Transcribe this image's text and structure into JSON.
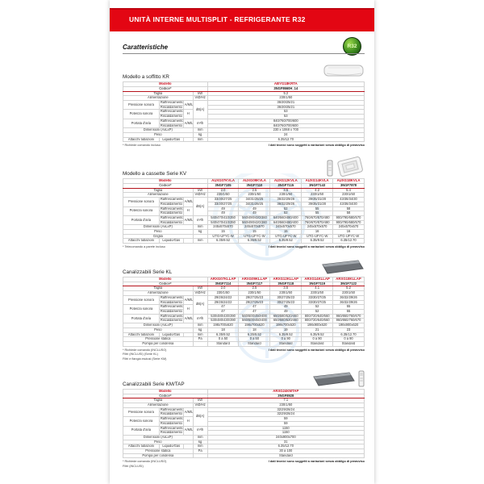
{
  "banner": {
    "title": "UNITÀ INTERNE MULTISPLIT - REFRIGERANTE R32"
  },
  "badge_label": "R32",
  "heading": "Caratteristiche",
  "common": {
    "modello_label": "Modello",
    "codice_label": "Codice*",
    "footnote_right": "I dati tecnici sono soggetti a variazioni senza obbligo di preavviso"
  },
  "sections": [
    {
      "title": "Modello a soffitto KR",
      "image": "ceiling-unit-image",
      "models": [
        "ABYG18KRTA"
      ],
      "codes": [
        "3NGF8660H_14"
      ],
      "rows": [
        {
          "label": "Taglia",
          "unit": "kW",
          "values": [
            "5.2"
          ]
        },
        {
          "label": "Alimentazione",
          "unit": "V/Ø/Hz",
          "values": [
            "230/1/50"
          ]
        },
        {
          "label": "Pressione sonora",
          "sub": [
            "Raffrescamento",
            "Riscaldamento"
          ],
          "qual": "A/M/L Q",
          "unit": "dB(A)",
          "unitRowspan": 4,
          "values": [
            [
              "36/30/25/21"
            ],
            [
              "36/30/25/21"
            ]
          ]
        },
        {
          "label": "Potenza sonora",
          "sub": [
            "Raffrescamento",
            "Riscaldamento"
          ],
          "qual": "H",
          "noUnit": true,
          "values": [
            [
              "53"
            ],
            [
              "53"
            ]
          ]
        },
        {
          "label": "Portata d'aria",
          "sub": [
            "Raffrescamento",
            "Riscaldamento"
          ],
          "qual": "A/M/L Q",
          "unit": "m³/h",
          "values": [
            [
              "840/760/700/600"
            ],
            [
              "840/760/700/600"
            ]
          ]
        },
        {
          "label": "Dimensioni (AxLxP)",
          "unit": "mm",
          "values": [
            "230 x 1068 x 700"
          ]
        },
        {
          "label": "Peso",
          "unit": "kg",
          "values": [
            "24"
          ]
        },
        {
          "label": "Attacchi tubazioni",
          "sub": [
            "Liquido/Gas"
          ],
          "unit": "mm",
          "values": [
            [
              "6.35/12.70"
            ]
          ]
        }
      ],
      "footnotes": [
        "* Richiede comando incluso"
      ]
    },
    {
      "title": "Modello a cassette Serie KV",
      "image": "cassette-unit-image",
      "models": [
        "AUXG07KVLA",
        "AUXG09KVLA",
        "AUXG12KVLA",
        "AUXG14KVLA",
        "AUXG18KVLA"
      ],
      "codes": [
        "3NGF7105",
        "3NGF7110",
        "3NGF7115",
        "3NGF7143",
        "3NGF7878"
      ],
      "rows": [
        {
          "label": "Taglia",
          "unit": "kW",
          "values": [
            "2.0",
            "2.5",
            "3.5",
            "4.2",
            "5.4"
          ]
        },
        {
          "label": "Alimentazione",
          "unit": "V/Ø/Hz",
          "values": [
            "230/1/50",
            "230/1/50",
            "230/1/50",
            "230/1/50",
            "230/1/50"
          ]
        },
        {
          "label": "Pressione sonora",
          "sub": [
            "Raffrescamento",
            "Riscaldamento"
          ],
          "qual": "A/M/L Q",
          "unit": "dB(A)",
          "unitRowspan": 4,
          "values": [
            [
              "33/30/27/25",
              "34/31/28/25",
              "36/32/29/26",
              "39/35/31/28",
              "43/38/34/30"
            ],
            [
              "33/30/27/25",
              "34/31/28/25",
              "36/32/29/26",
              "39/35/31/28",
              "43/38/34/30"
            ]
          ]
        },
        {
          "label": "Potenza sonora",
          "sub": [
            "Raffrescamento",
            "Riscaldamento"
          ],
          "qual": "H",
          "noUnit": true,
          "values": [
            [
              "49",
              "49",
              "52",
              "55",
              "58"
            ],
            [
              "49",
              "49",
              "52",
              "55",
              "58"
            ]
          ]
        },
        {
          "label": "Portata d'aria",
          "sub": [
            "Raffrescamento",
            "Riscaldamento"
          ],
          "qual": "A/M/L Q",
          "unit": "m³/h",
          "values": [
            [
              "540/470/410/350",
              "560/490/420/360",
              "640/560/480/400",
              "760/670/570/480",
              "900/790/680/570"
            ],
            [
              "540/470/410/350",
              "560/490/420/360",
              "640/560/480/400",
              "760/670/570/480",
              "900/790/680/570"
            ]
          ]
        },
        {
          "label": "Dimensioni (AxLxP)",
          "unit": "mm",
          "values": [
            "245x570x570",
            "245x570x570",
            "245x570x570",
            "245x570x570",
            "245x570x570"
          ]
        },
        {
          "label": "Peso",
          "unit": "kg",
          "values": [
            "15",
            "15",
            "15",
            "16",
            "16"
          ]
        },
        {
          "label": "Griglia",
          "unit": "",
          "values": [
            "UTG-UFYC-W",
            "UTG-UFYC-W",
            "UTG-UFYC-W",
            "UTG-UFYC-W",
            "UTG-UFYC-W"
          ]
        },
        {
          "label": "Attacchi tubazioni",
          "sub": [
            "Liquido/Gas"
          ],
          "unit": "mm",
          "values": [
            [
              "6.35/9.52",
              "6.35/9.52",
              "6.35/9.52",
              "6.35/9.52",
              "6.35/12.70"
            ]
          ]
        }
      ],
      "footnotes": [
        "* Telecomando a parete incluso"
      ]
    },
    {
      "title": "Canalizzabili Serie KL",
      "image": "duct-unit-image",
      "models": [
        "ARXG07KLLAP",
        "ARXG09KLLAP",
        "ARXG12KLLAP",
        "ARXG14KLLAP",
        "ARXG18KLLAP"
      ],
      "codes": [
        "3NGF7114",
        "3NGF7117",
        "3NGF7118",
        "3NGF7119",
        "3NGF7122"
      ],
      "rows": [
        {
          "label": "Taglia",
          "unit": "kW",
          "values": [
            "2.0",
            "2.5",
            "3.5",
            "4.1",
            "5.2"
          ]
        },
        {
          "label": "Alimentazione",
          "unit": "V/Ø/Hz",
          "values": [
            "230/1/50",
            "230/1/50",
            "230/1/50",
            "230/1/50",
            "230/1/50"
          ]
        },
        {
          "label": "Pressione sonora",
          "sub": [
            "Raffrescamento",
            "Riscaldamento"
          ],
          "qual": "A/M/L Q",
          "unit": "dB(A)",
          "unitRowspan": 4,
          "values": [
            [
              "29/26/24/22",
              "29/27/25/23",
              "30/27/25/23",
              "33/30/27/25",
              "36/32/29/26"
            ],
            [
              "29/26/24/22",
              "29/27/25/23",
              "30/27/25/23",
              "33/30/27/25",
              "36/32/29/26"
            ]
          ]
        },
        {
          "label": "Potenza sonora",
          "sub": [
            "Raffrescamento",
            "Riscaldamento"
          ],
          "qual": "H",
          "noUnit": true,
          "values": [
            [
              "47",
              "47",
              "49",
              "52",
              "55"
            ],
            [
              "47",
              "47",
              "49",
              "52",
              "55"
            ]
          ]
        },
        {
          "label": "Portata d'aria",
          "sub": [
            "Raffrescamento",
            "Riscaldamento"
          ],
          "qual": "A/M/L Q",
          "unit": "m³/h",
          "values": [
            [
              "530/480/430/390",
              "560/500/450/400",
              "650/580/520/460",
              "800/720/640/560",
              "960/860/760/670"
            ],
            [
              "530/480/430/390",
              "560/500/450/400",
              "650/580/520/460",
              "800/720/640/560",
              "960/860/760/670"
            ]
          ]
        },
        {
          "label": "Dimensioni (AxLxP)",
          "unit": "mm",
          "values": [
            "198x700x620",
            "198x700x620",
            "198x700x620",
            "198x900x620",
            "198x900x620"
          ]
        },
        {
          "label": "Peso",
          "unit": "kg",
          "values": [
            "18",
            "18",
            "19",
            "21",
            "23"
          ]
        },
        {
          "label": "Attacchi tubazioni",
          "sub": [
            "Liquido/Gas"
          ],
          "unit": "mm",
          "values": [
            [
              "6.35/9.52",
              "6.35/9.52",
              "6.35/9.52",
              "6.35/9.52",
              "6.35/12.70"
            ]
          ]
        },
        {
          "label": "Pressione statica",
          "unit": "Pa",
          "values": [
            "0 a 50",
            "0 a 50",
            "0 a 90",
            "0 a 90",
            "0 a 90"
          ]
        },
        {
          "label": "Pompa per condensa",
          "unit": "",
          "values": [
            "Standard",
            "Standard",
            "Standard",
            "Standard",
            "Standard"
          ]
        }
      ],
      "footnotes": [
        "* Richiede comando (INCLUSO)",
        "Filtri (INCLUSI) (Serie KL)",
        "Filtri e flangia esclusi (Serie KM)"
      ]
    },
    {
      "title": "Canalizzabili Serie KM/TAP",
      "image": "duct-unit-remote-image",
      "models": [
        "ARXG24KMTAP"
      ],
      "codes": [
        "3NGF8928"
      ],
      "rows": [
        {
          "label": "Taglia",
          "unit": "kW",
          "values": [
            "7.1"
          ]
        },
        {
          "label": "Alimentazione",
          "unit": "V/Ø/Hz",
          "values": [
            "230/1/50"
          ]
        },
        {
          "label": "Pressione sonora",
          "sub": [
            "Raffrescamento",
            "Riscaldamento"
          ],
          "qual": "A/M/L Q",
          "unit": "dB(A)",
          "unitRowspan": 4,
          "values": [
            [
              "32/29/26/24"
            ],
            [
              "32/29/26/24"
            ]
          ]
        },
        {
          "label": "Potenza sonora",
          "sub": [
            "Raffrescamento",
            "Riscaldamento"
          ],
          "qual": "H",
          "noUnit": true,
          "values": [
            [
              "59"
            ],
            [
              "59"
            ]
          ]
        },
        {
          "label": "Portata d'aria",
          "sub": [
            "Raffrescamento",
            "Riscaldamento"
          ],
          "qual": "A/M/L Q",
          "unit": "m³/h",
          "values": [
            [
              "1150"
            ],
            [
              "1150"
            ]
          ]
        },
        {
          "label": "Dimensioni (AxLxP)",
          "unit": "mm",
          "values": [
            "240x900x700"
          ]
        },
        {
          "label": "Peso",
          "unit": "kg",
          "values": [
            "31"
          ]
        },
        {
          "label": "Attacchi tubazioni",
          "sub": [
            "Liquido/Gas"
          ],
          "unit": "mm",
          "values": [
            [
              "6.35/12.70"
            ]
          ]
        },
        {
          "label": "Pressione statica",
          "unit": "Pa",
          "values": [
            "30 a 100"
          ]
        },
        {
          "label": "Pompa per condensa",
          "unit": "",
          "values": [
            "Standard"
          ]
        }
      ],
      "footnotes": [
        "* Richiede comando (INCLUSO)",
        "Filtri (INCLUSI)"
      ]
    }
  ]
}
